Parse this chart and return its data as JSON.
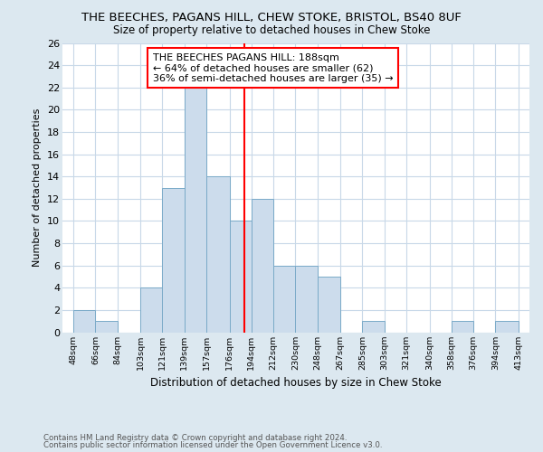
{
  "title": "THE BEECHES, PAGANS HILL, CHEW STOKE, BRISTOL, BS40 8UF",
  "subtitle": "Size of property relative to detached houses in Chew Stoke",
  "xlabel": "Distribution of detached houses by size in Chew Stoke",
  "ylabel": "Number of detached properties",
  "footnote1": "Contains HM Land Registry data © Crown copyright and database right 2024.",
  "footnote2": "Contains public sector information licensed under the Open Government Licence v3.0.",
  "bin_edges": [
    48,
    66,
    84,
    103,
    121,
    139,
    157,
    176,
    194,
    212,
    230,
    248,
    267,
    285,
    303,
    321,
    340,
    358,
    376,
    394,
    413
  ],
  "bar_heights": [
    2,
    1,
    0,
    4,
    13,
    22,
    14,
    10,
    12,
    6,
    6,
    5,
    0,
    1,
    0,
    0,
    0,
    1,
    0,
    1
  ],
  "bar_color": "#ccdcec",
  "bar_edgecolor": "#7aaac8",
  "tick_labels": [
    "48sqm",
    "66sqm",
    "84sqm",
    "103sqm",
    "121sqm",
    "139sqm",
    "157sqm",
    "176sqm",
    "194sqm",
    "212sqm",
    "230sqm",
    "248sqm",
    "267sqm",
    "285sqm",
    "303sqm",
    "321sqm",
    "340sqm",
    "358sqm",
    "376sqm",
    "394sqm",
    "413sqm"
  ],
  "tick_positions": [
    48,
    66,
    84,
    103,
    121,
    139,
    157,
    176,
    194,
    212,
    230,
    248,
    267,
    285,
    303,
    321,
    340,
    358,
    376,
    394,
    413
  ],
  "red_line_x": 188,
  "annotation_title": "THE BEECHES PAGANS HILL: 188sqm",
  "annotation_line1": "← 64% of detached houses are smaller (62)",
  "annotation_line2": "36% of semi-detached houses are larger (35) →",
  "ylim": [
    0,
    26
  ],
  "xlim": [
    39,
    422
  ],
  "yticks": [
    0,
    2,
    4,
    6,
    8,
    10,
    12,
    14,
    16,
    18,
    20,
    22,
    24,
    26
  ],
  "fig_bg_color": "#dce8f0",
  "plot_bg_color": "#ffffff",
  "grid_color": "#c8d8e8",
  "title_fontsize": 9.5,
  "subtitle_fontsize": 8.5,
  "ylabel_fontsize": 8,
  "xlabel_fontsize": 8.5,
  "tick_fontsize": 6.8,
  "ytick_fontsize": 8,
  "footnote_fontsize": 6.2,
  "annotation_fontsize": 8
}
